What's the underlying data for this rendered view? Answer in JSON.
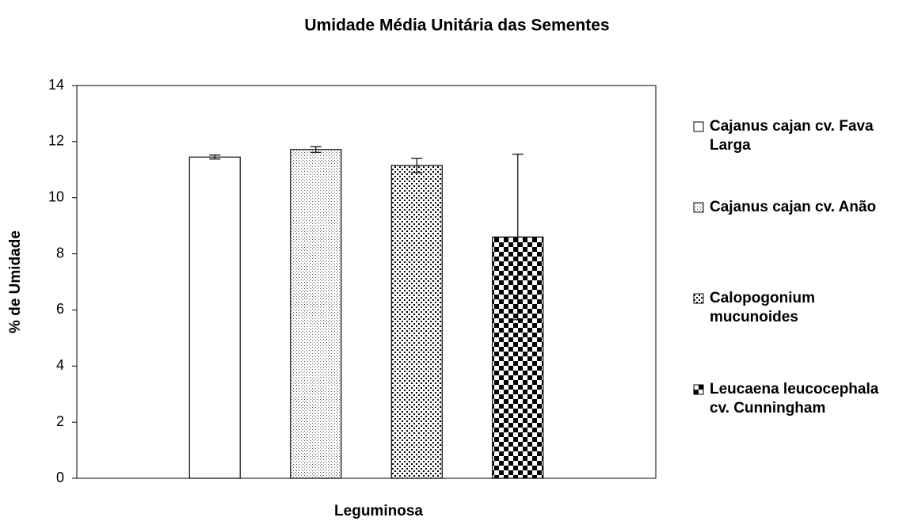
{
  "chart_data": {
    "type": "bar",
    "title": "Umidade Média Unitária das Sementes",
    "x_label": "Leguminosa",
    "y_label": "% de Umidade",
    "categories": [
      null
    ],
    "series": [
      {
        "name": "Cajanus cajan cv. Fava Larga",
        "color": "#ffffff",
        "pattern": "none",
        "values": [
          11.45
        ],
        "errors": [
          0.07
        ]
      },
      {
        "name": "Cajanus cajan cv. Anão",
        "color": "#ffffff",
        "pattern": "dots-fine",
        "values": [
          11.72
        ],
        "errors": [
          0.1
        ]
      },
      {
        "name": "Calopogonium mucunoides",
        "color": "#ffffff",
        "pattern": "dots",
        "values": [
          11.15
        ],
        "errors": [
          0.25
        ]
      },
      {
        "name": "Leucaena leucocephala cv. Cunningham",
        "color": "#ffffff",
        "pattern": "checker",
        "values": [
          8.6
        ],
        "errors": [
          2.95
        ]
      }
    ],
    "ylim": [
      0,
      14
    ],
    "yticks": [
      0,
      2,
      4,
      6,
      8,
      10,
      12,
      14
    ],
    "grid": false,
    "legend": "right"
  }
}
